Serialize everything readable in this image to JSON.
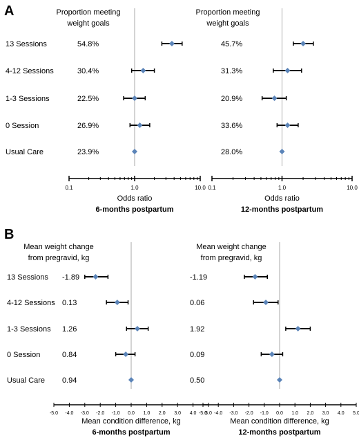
{
  "figure": {
    "panel_a_letter": "A",
    "panel_b_letter": "B"
  },
  "colors": {
    "marker": "#5b84b8",
    "whisker": "#000000",
    "reference_line": "#aaaaaa",
    "axis": "#000000"
  },
  "chart_data": [
    {
      "type": "forest",
      "panel": "A",
      "title": "6-months postpartum",
      "xlabel": "Odds ratio",
      "column_header": [
        "Proportion meeting",
        "weight goals"
      ],
      "xscale": "log",
      "xlim": [
        0.1,
        10.0
      ],
      "tick_labels": [
        "0.1",
        "1.0",
        "10.0"
      ],
      "reference_value": 1.0,
      "categories": [
        "13 Sessions",
        "4-12 Sessions",
        "1-3 Sessions",
        "0 Session",
        "Usual Care"
      ],
      "values_text": [
        "54.8%",
        "30.4%",
        "22.5%",
        "26.9%",
        "23.9%"
      ],
      "estimate": [
        3.7,
        1.35,
        1.0,
        1.2,
        1.0
      ],
      "ci_low": [
        2.6,
        0.9,
        0.68,
        0.85,
        1.0
      ],
      "ci_high": [
        5.3,
        2.0,
        1.45,
        1.7,
        1.0
      ]
    },
    {
      "type": "forest",
      "panel": "A",
      "title": "12-months postpartum",
      "xlabel": "Odds ratio",
      "column_header": [
        "Proportion meeting",
        "weight goals"
      ],
      "xscale": "log",
      "xlim": [
        0.1,
        10.0
      ],
      "tick_labels": [
        "0.1",
        "1.0",
        "10.0"
      ],
      "reference_value": 1.0,
      "categories": [
        "13 Sessions",
        "4-12 Sessions",
        "1-3 Sessions",
        "0 Session",
        "Usual Care"
      ],
      "values_text": [
        "45.7%",
        "31.3%",
        "20.9%",
        "33.6%",
        "28.0%"
      ],
      "estimate": [
        2.0,
        1.2,
        0.78,
        1.2,
        1.0
      ],
      "ci_low": [
        1.45,
        0.75,
        0.52,
        0.85,
        1.0
      ],
      "ci_high": [
        2.8,
        1.9,
        1.15,
        1.7,
        1.0
      ]
    },
    {
      "type": "forest",
      "panel": "B",
      "title": "6-months postpartum",
      "xlabel": "Mean condition difference, kg",
      "column_header": [
        "Mean weight change",
        "from pregravid, kg"
      ],
      "xscale": "linear",
      "xlim": [
        -5.0,
        5.0
      ],
      "tick_labels": [
        "-5.0",
        "-4.0",
        "-3.0",
        "-2.0",
        "-1.0",
        "0.0",
        "1.0",
        "2.0",
        "3.0",
        "4.0",
        "5.0"
      ],
      "reference_value": 0.0,
      "categories": [
        "13 Sessions",
        "4-12 Sessions",
        "1-3 Sessions",
        "0 Session",
        "Usual Care"
      ],
      "values_text": [
        "-1.89",
        "0.13",
        "1.26",
        "0.84",
        "0.94"
      ],
      "estimate": [
        -2.3,
        -0.9,
        0.4,
        -0.35,
        0.0
      ],
      "ci_low": [
        -3.0,
        -1.6,
        -0.3,
        -1.0,
        0.0
      ],
      "ci_high": [
        -1.5,
        -0.2,
        1.1,
        0.25,
        0.0
      ]
    },
    {
      "type": "forest",
      "panel": "B",
      "title": "12-months postpartum",
      "xlabel": "Mean condition difference, kg",
      "column_header": [
        "Mean weight change",
        "from pregravid, kg"
      ],
      "xscale": "linear",
      "xlim": [
        -5.0,
        5.0
      ],
      "tick_labels": [
        "-5.0",
        "-4.0",
        "-3.0",
        "-2.0",
        "-1.0",
        "0.0",
        "1.0",
        "2.0",
        "3.0",
        "4.0",
        "5.0"
      ],
      "reference_value": 0.0,
      "categories": [
        "13 Sessions",
        "4-12 Sessions",
        "1-3 Sessions",
        "0 Session",
        "Usual Care"
      ],
      "values_text": [
        "-1.19",
        "0.06",
        "1.92",
        "0.09",
        "0.50"
      ],
      "estimate": [
        -1.6,
        -0.9,
        1.2,
        -0.5,
        0.0
      ],
      "ci_low": [
        -2.3,
        -1.7,
        0.4,
        -1.2,
        0.0
      ],
      "ci_high": [
        -0.8,
        -0.1,
        2.0,
        0.2,
        0.0
      ]
    }
  ]
}
